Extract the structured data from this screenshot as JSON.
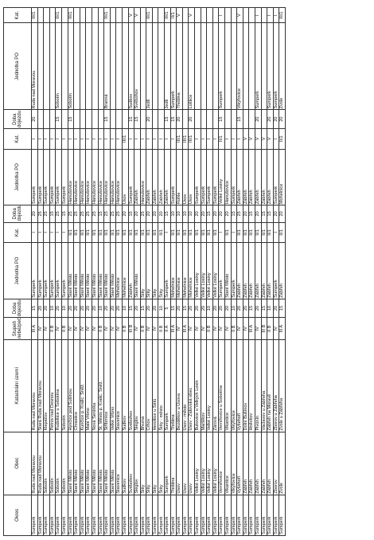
{
  "headers": [
    "Okres",
    "Obec",
    "Katastrální území",
    "Stupeň nebezpečí",
    "Doba dojezdu",
    "Jednotka PO",
    "Kat.",
    "Doba dojezdu",
    "Jednotka PO",
    "Kat.",
    "Doba dojezdu",
    "Jednotka PO",
    "Kat."
  ],
  "rows": [
    [
      "Šumperk",
      "Ruda nad Moravou",
      "Ruda nad Moravou",
      "III A",
      "15",
      "Šumperk",
      "I",
      "20",
      "Šumperk",
      "I",
      "20",
      "Ruda nad Moravou",
      "III/1"
    ],
    [
      "Šumperk",
      "Ruda nad Moravou",
      "Stará Ruda nad Moravou",
      "IV",
      "20",
      "Šumperk",
      "I",
      "25",
      "Šumperk",
      "I",
      "",
      "",
      ""
    ],
    [
      "Šumperk",
      "Sobotín",
      "Klepáčov",
      "IV",
      "20",
      "Šumperk",
      "I",
      "25",
      "Šumperk",
      "I",
      "",
      "",
      ""
    ],
    [
      "Šumperk",
      "Sobotín",
      "Petrov nad Desnou",
      "II B",
      "10",
      "Šumperk",
      "I",
      "15",
      "Šumperk",
      "I",
      "",
      "",
      ""
    ],
    [
      "Šumperk",
      "Sobotín",
      "Rudoltice u Sobotína",
      "IV",
      "20",
      "Šumperk",
      "I",
      "25",
      "Šumperk",
      "I",
      "15",
      "Sobotín",
      "III/1"
    ],
    [
      "Šumperk",
      "Sobotín",
      "Sobotín",
      "II B",
      "10",
      "Šumperk",
      "I",
      "15",
      "Šumperk",
      "I",
      "",
      "",
      ""
    ],
    [
      "Šumperk",
      "Staré Město",
      "Hynčice pod Sušinou",
      "IV",
      "20",
      "Staré Město",
      "II/1",
      "25",
      "Hanušovice",
      "I",
      "15",
      "Sobotín",
      "III/1"
    ],
    [
      "Šumperk",
      "Staré Město",
      "Chrastice",
      "IV",
      "20",
      "Staré Město",
      "II/1",
      "25",
      "Hanušovice",
      "I",
      "",
      "",
      ""
    ],
    [
      "Šumperk",
      "Staré Město",
      "Kunčice p. Kralic. Sněž.",
      "IV",
      "20",
      "Staré Město",
      "II/1",
      "25",
      "Hanušovice",
      "I",
      "",
      "",
      ""
    ],
    [
      "Šumperk",
      "Staré Město",
      "Malé Vrbno",
      "IV",
      "20",
      "Staré Město",
      "II/1",
      "25",
      "Hanušovice",
      "I",
      "",
      "",
      ""
    ],
    [
      "Šumperk",
      "Staré Město",
      "Nová Seninka",
      "IV",
      "20",
      "Staré Město",
      "II/1",
      "25",
      "Hanušovice",
      "I",
      "",
      "",
      ""
    ],
    [
      "Šumperk",
      "Staré Město",
      "St. Město p. Kralic. Sněž.",
      "II B",
      "10",
      "Staré Město",
      "II/1",
      "15",
      "Hanušovice",
      "I",
      "",
      "",
      ""
    ],
    [
      "Šumperk",
      "Staré Město",
      "Stříbrnice",
      "IV",
      "20",
      "Staré Město",
      "II/1",
      "25",
      "Hanušovice",
      "I",
      "15",
      "Branná",
      "III/1"
    ],
    [
      "Šumperk",
      "Staré Město",
      "Velké Vrbno",
      "IV",
      "20",
      "Staré Město",
      "II/1",
      "25",
      "Hanušovice",
      "I",
      "",
      "",
      ""
    ],
    [
      "Šumperk",
      "Stavenice",
      "Stavenice",
      "IV",
      "20",
      "Mohelnice",
      "II/1",
      "25",
      "Hanušovice",
      "I",
      "",
      "",
      ""
    ],
    [
      "Šumperk",
      "Sudkov",
      "Sudkov",
      "II B",
      "10",
      "Mohelnice",
      "II/1",
      "20",
      "Úsov",
      "III/1",
      "",
      "",
      ""
    ],
    [
      "Šumperk",
      "Svébohov",
      "Svébohov",
      "III B",
      "15",
      "Zábřeh",
      "II/1",
      "15",
      "Šumperk",
      "I",
      "15",
      "Sudkov",
      "V"
    ],
    [
      "Šumperk",
      "Šléglov",
      "Šléglov",
      "IV",
      "20",
      "Staré Město",
      "II/1",
      "20",
      "Zábřeh",
      "I",
      "15",
      "Svébohov",
      "V"
    ],
    [
      "Šumperk",
      "Štíty",
      "Březná",
      "II B",
      "15",
      "Štíty",
      "II/1",
      "25",
      "Hanušovice",
      "I",
      "",
      "",
      ""
    ],
    [
      "Šumperk",
      "Štíty",
      "Crhov",
      "IV",
      "20",
      "Štíty",
      "II/1",
      "20",
      "Zábřeh",
      "I",
      "20",
      "Jedlí",
      "III/1"
    ],
    [
      "Šumperk",
      "Štíty",
      "Heroltice u Štítů",
      "IV",
      "20",
      "Štíty",
      "II/1",
      "20",
      "Zábřeh",
      "I",
      "",
      "",
      ""
    ],
    [
      "Šumperk",
      "Štíty",
      "Štíty - město",
      "II B",
      "10",
      "Štíty",
      "II/1",
      "20",
      "Zábřeh",
      "I",
      "",
      "",
      ""
    ],
    [
      "Šumperk",
      "Šumperk",
      "Šumperk",
      "II A",
      "5",
      "Šumperk",
      "I",
      "15",
      "Zábřeh",
      "I",
      "15",
      "Jedlí",
      "III/1"
    ],
    [
      "Šumperk",
      "Třeština",
      "Třeština",
      "III A",
      "15",
      "Mohelnice",
      "II/1",
      "10",
      "Šumperk",
      "I",
      "15",
      "Šumperk",
      "II/1"
    ],
    [
      "Šumperk",
      "Úsov",
      "Bezděkov u Úsova",
      "IV",
      "20",
      "Mohelnice",
      "II/1",
      "10",
      "Rohle",
      "III/1",
      "20",
      "Třeština",
      "V"
    ],
    [
      "Šumperk",
      "Úsov",
      "Úsov - město",
      "III A",
      "15",
      "Mohelnice",
      "II/1",
      "10",
      "Úsov",
      "III/1",
      "",
      "",
      ""
    ],
    [
      "Šumperk",
      "Úsov",
      "Úsov - Židovská obec",
      "IV",
      "20",
      "Mohelnice",
      "II/1",
      "10",
      "Úsov",
      "III/1",
      "20",
      "Loštice",
      "V"
    ],
    [
      "Šumperk",
      "Velké Losiny",
      "Bukovice u Velkých Losin",
      "IV",
      "20",
      "Velké Losiny",
      "II/1",
      "20",
      "Šumperk",
      "I",
      "",
      "",
      ""
    ],
    [
      "Šumperk",
      "Velké Losiny",
      "Maršíkov",
      "IV",
      "20",
      "Velké Losiny",
      "II/1",
      "20",
      "Šumperk",
      "I",
      "",
      "",
      ""
    ],
    [
      "Šumperk",
      "Velké Losiny",
      "Velké Losiny",
      "II B",
      "10",
      "Velké Losiny",
      "II/1",
      "15",
      "Šumperk",
      "I",
      "",
      "",
      ""
    ],
    [
      "Šumperk",
      "Velké Losiny",
      "Žárová",
      "IV",
      "20",
      "Velké Losiny",
      "II/1",
      "20",
      "Šumperk",
      "I",
      "",
      "",
      ""
    ],
    [
      "Šumperk",
      "Vernířovice",
      "Vernířovice u Sobotína",
      "IV",
      "20",
      "Šumperk",
      "I",
      "20",
      "Velké Losiny",
      "II/1",
      "15",
      "Šumperk",
      "I"
    ],
    [
      "Šumperk",
      "Vikantice",
      "Vikantice",
      "IV",
      "20",
      "Staré Město",
      "II/1",
      "20",
      "Hanušovice",
      "I",
      "",
      "",
      ""
    ],
    [
      "Šumperk",
      "Vikýřovice",
      "Vikýřovice",
      "II B",
      "10",
      "Šumperk",
      "I",
      "15",
      "Šumperk",
      "I",
      "",
      "",
      ""
    ],
    [
      "Šumperk",
      "Vyšehoří",
      "Vyšehoří",
      "IV",
      "20",
      "Zábřeh",
      "II/1",
      "25",
      "Zábřeh",
      "I",
      "15",
      "Vikýřovice",
      "V"
    ],
    [
      "Šumperk",
      "Zábřeh",
      "Dolní Bušínov",
      "IV",
      "20",
      "Zábřeh",
      "II/1",
      "20",
      "Zábřeh",
      "V",
      "",
      "",
      ""
    ],
    [
      "Šumperk",
      "Zábřeh",
      "Hněvkov",
      "III A",
      "15",
      "Zábřeh",
      "II/1",
      "15",
      "Zábřeh",
      "V",
      "",
      "",
      ""
    ],
    [
      "Šumperk",
      "Zábřeh",
      "Pivonín",
      "IV",
      "20",
      "Zábřeh",
      "II/1",
      "20",
      "Zábřeh",
      "V",
      "20",
      "Šumperk",
      "I"
    ],
    [
      "Šumperk",
      "Zábřeh",
      "Václavov u Zábřeha",
      "III B",
      "15",
      "Zábřeh",
      "II/1",
      "15",
      "Zábřeh",
      "V",
      "",
      "",
      ""
    ],
    [
      "Šumperk",
      "Zábřeh",
      "Zábřeh na Moravě",
      "II B",
      "10",
      "Zábřeh",
      "II/1",
      "15",
      "Zábřeh",
      "V",
      "20",
      "Šumperk",
      "I"
    ],
    [
      "Šumperk",
      "Zborov",
      "Zborov u Zábřeha",
      "IV",
      "20",
      "Šumperk",
      "I",
      "20",
      "Šumperk",
      "I",
      "20",
      "Šumperk",
      "I"
    ],
    [
      "Šumperk",
      "Zvole",
      "Zvole u Zábřeha",
      "III A",
      "15",
      "Zábřeh",
      "II/1",
      "20",
      "Mohelnice",
      "II/1",
      "20",
      "Zvole",
      "III/1"
    ]
  ]
}
